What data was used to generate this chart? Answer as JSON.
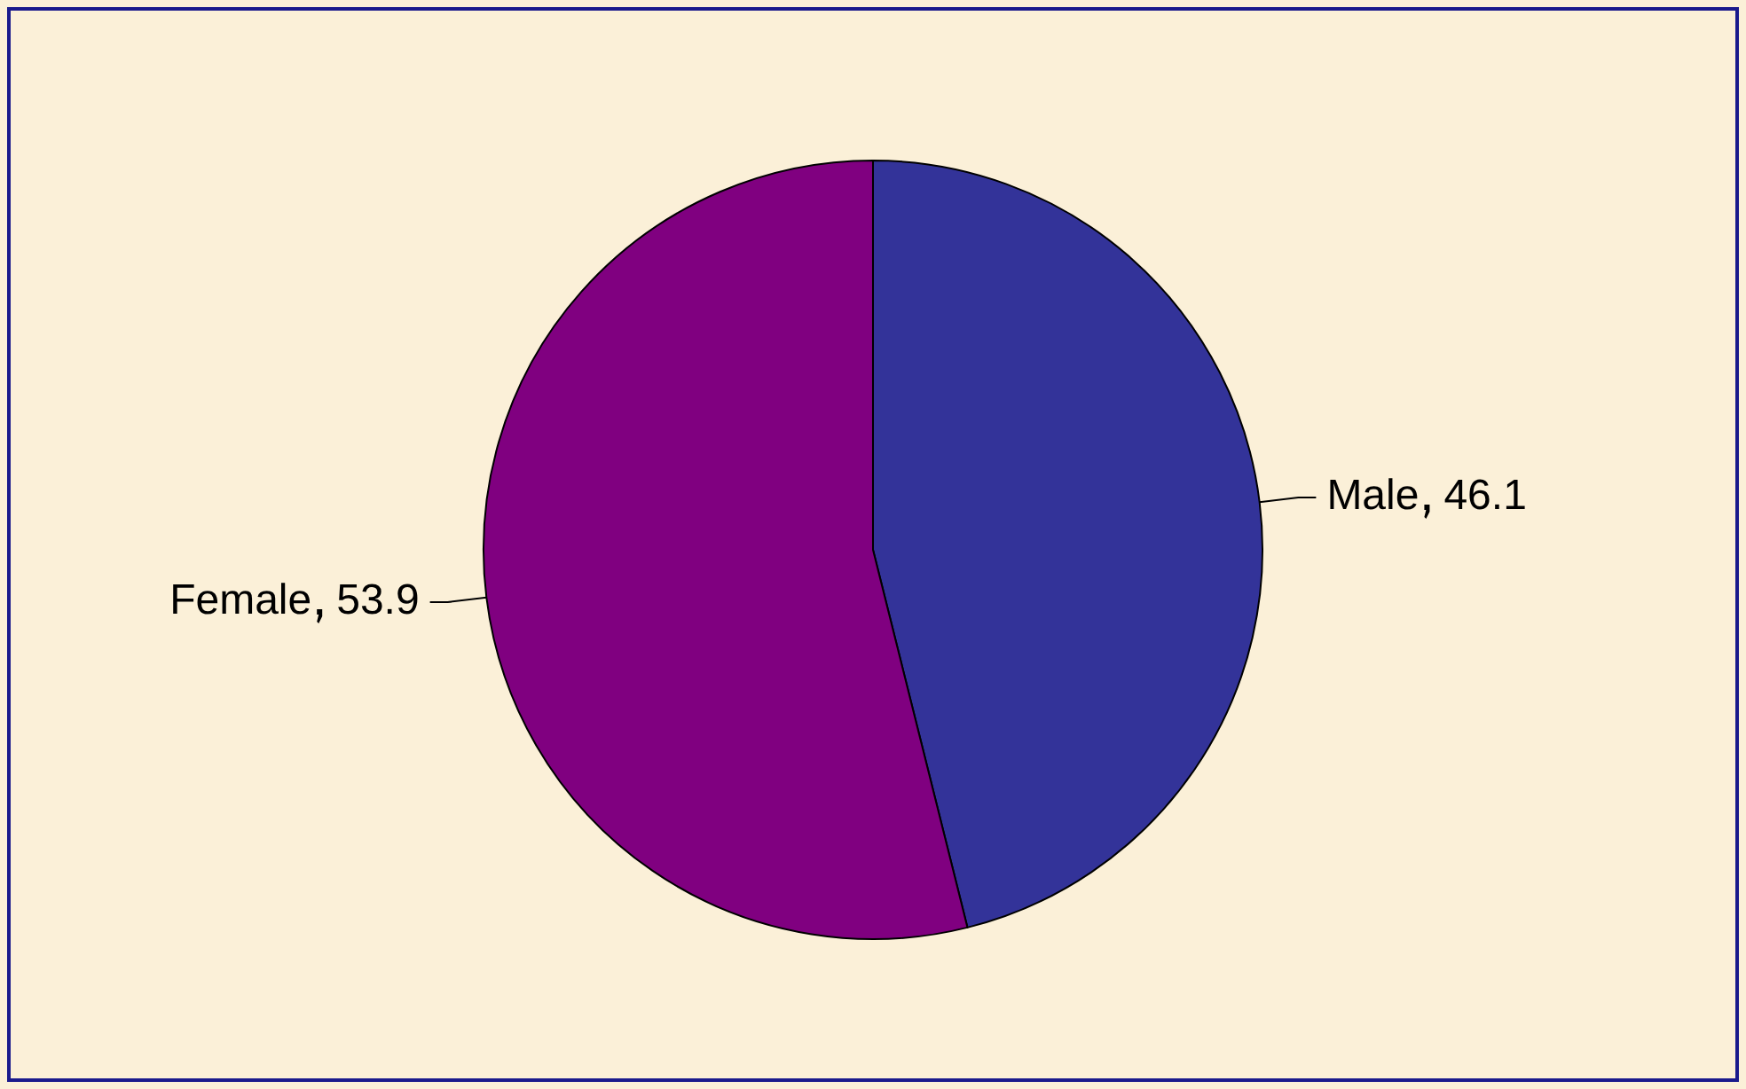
{
  "chart_data": {
    "type": "pie",
    "categories": [
      "Male",
      "Female"
    ],
    "values": [
      46.1,
      53.9
    ],
    "colors": [
      "#333399",
      "#800080"
    ],
    "data_labels": true,
    "legend": false
  }
}
